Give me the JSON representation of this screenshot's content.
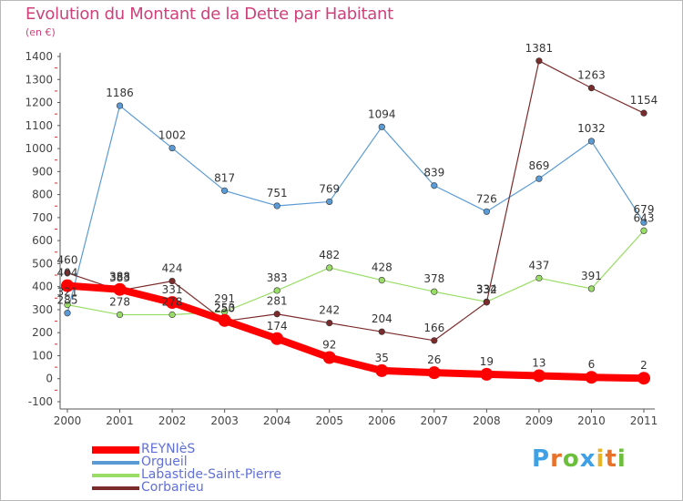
{
  "title": "Evolution du Montant de la Dette par Habitant",
  "unit": "(en €)",
  "logo": {
    "text": "Proxiti",
    "letters": [
      {
        "ch": "P",
        "color": "#3fa0e6"
      },
      {
        "ch": "r",
        "color": "#e8722a"
      },
      {
        "ch": "o",
        "color": "#6bbf3a"
      },
      {
        "ch": "x",
        "color": "#3fa0e6"
      },
      {
        "ch": "i",
        "color": "#e8b52a"
      },
      {
        "ch": "t",
        "color": "#e8722a"
      },
      {
        "ch": "i",
        "color": "#6bbf3a"
      }
    ]
  },
  "chart_data": {
    "type": "line",
    "title": "Evolution du Montant de la Dette par Habitant",
    "ylabel": "(en €)",
    "xlabel": "",
    "x": [
      "2000",
      "2001",
      "2002",
      "2003",
      "2004",
      "2005",
      "2006",
      "2007",
      "2008",
      "2009",
      "2010",
      "2011"
    ],
    "ylim": [
      -100,
      1400
    ],
    "ytick_step": 100,
    "grid": false,
    "legend_position": "bottom-left",
    "series": [
      {
        "name": "REYNIèS",
        "color": "#ff0000",
        "width": 8,
        "values": [
          404,
          388,
          331,
          253,
          174,
          92,
          35,
          26,
          19,
          13,
          6,
          2
        ]
      },
      {
        "name": "Orgueil",
        "color": "#5b9bd5",
        "width": 1.2,
        "values": [
          285,
          1186,
          1002,
          817,
          751,
          769,
          1094,
          839,
          726,
          869,
          1032,
          679
        ]
      },
      {
        "name": "Labastide-Saint-Pierre",
        "color": "#99dd66",
        "width": 1.2,
        "values": [
          321,
          278,
          278,
          291,
          383,
          482,
          428,
          378,
          334,
          437,
          391,
          643
        ]
      },
      {
        "name": "Corbarieu",
        "color": "#7b2b2b",
        "width": 1.2,
        "values": [
          460,
          383,
          424,
          250,
          281,
          242,
          204,
          166,
          332,
          1381,
          1263,
          1154
        ]
      }
    ]
  }
}
